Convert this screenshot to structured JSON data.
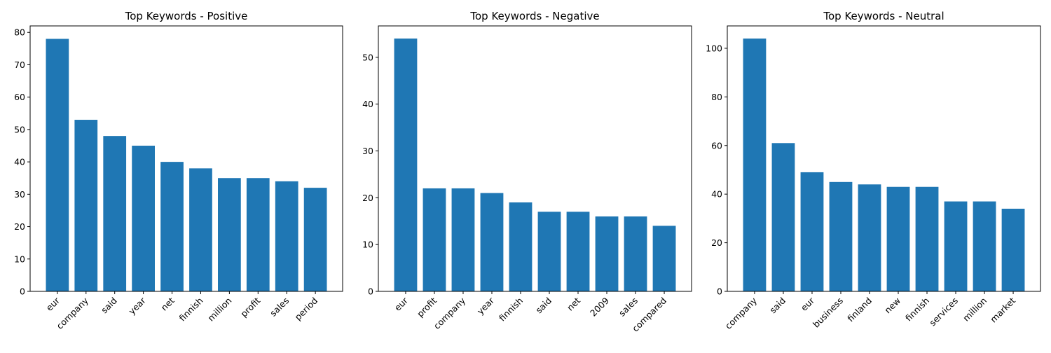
{
  "chart_data": [
    {
      "type": "bar",
      "title": "Top Keywords - Positive",
      "categories": [
        "eur",
        "company",
        "said",
        "year",
        "net",
        "finnish",
        "million",
        "profit",
        "sales",
        "period"
      ],
      "values": [
        78,
        53,
        48,
        45,
        40,
        38,
        35,
        35,
        34,
        32
      ],
      "ylim": [
        0,
        82
      ],
      "yticks": [
        0,
        10,
        20,
        30,
        40,
        50,
        60,
        70,
        80
      ],
      "grid": false,
      "color": "#1f77b4"
    },
    {
      "type": "bar",
      "title": "Top Keywords - Negative",
      "categories": [
        "eur",
        "profit",
        "company",
        "year",
        "finnish",
        "said",
        "net",
        "2009",
        "sales",
        "compared"
      ],
      "values": [
        54,
        22,
        22,
        21,
        19,
        17,
        17,
        16,
        16,
        14
      ],
      "ylim": [
        0,
        56.7
      ],
      "yticks": [
        0,
        10,
        20,
        30,
        40,
        50
      ],
      "grid": false,
      "color": "#1f77b4"
    },
    {
      "type": "bar",
      "title": "Top Keywords - Neutral",
      "categories": [
        "company",
        "said",
        "eur",
        "business",
        "finland",
        "new",
        "finnish",
        "services",
        "million",
        "market"
      ],
      "values": [
        104,
        61,
        49,
        45,
        44,
        43,
        43,
        37,
        37,
        34
      ],
      "ylim": [
        0,
        109.2
      ],
      "yticks": [
        0,
        20,
        40,
        60,
        80,
        100
      ],
      "grid": false,
      "color": "#1f77b4"
    }
  ]
}
